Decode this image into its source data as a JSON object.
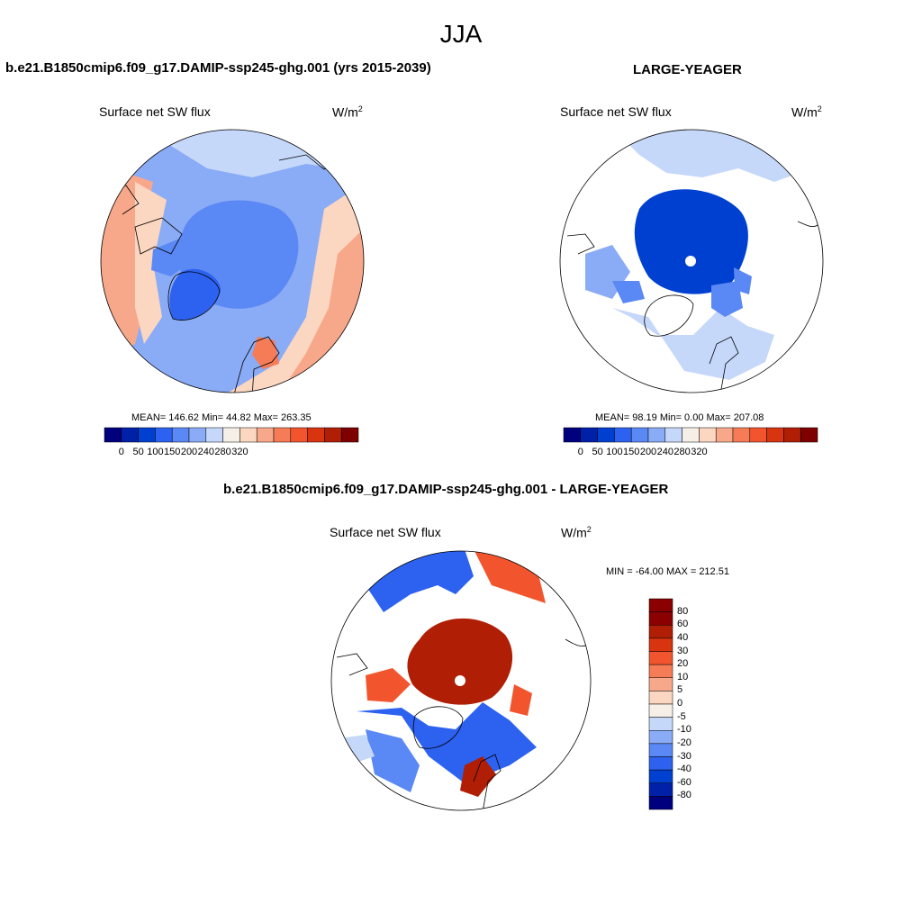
{
  "main_title": "JJA",
  "panels": [
    {
      "title": "b.e21.B1850cmip6.f09_g17.DAMIP-ssp245-ghg.001 (yrs 2015-2039)",
      "variable": "Surface net SW flux",
      "units": "W/m",
      "units_sup": "2",
      "stats": "MEAN= 146.62  Min=  44.82  Max= 263.35"
    },
    {
      "title": "LARGE-YEAGER",
      "variable": "Surface net SW flux",
      "units": "W/m",
      "units_sup": "2",
      "stats": "MEAN=  98.19  Min=   0.00  Max= 207.08"
    },
    {
      "title": "b.e21.B1850cmip6.f09_g17.DAMIP-ssp245-ghg.001 - LARGE-YEAGER",
      "variable": "Surface net SW flux",
      "units": "W/m",
      "units_sup": "2",
      "stats": "MIN = -64.00 MAX = 212.51"
    }
  ],
  "colorbar_abs": {
    "colors": [
      "#00007f",
      "#0020a8",
      "#0040d0",
      "#2d62f0",
      "#5a88f4",
      "#8aabf5",
      "#c5d8fa",
      "#f5efe8",
      "#fbd6c1",
      "#f8a88a",
      "#f57c56",
      "#f2552e",
      "#d93410",
      "#b01e05",
      "#7f0000"
    ],
    "tick_labels": [
      "0",
      "50",
      "100",
      "150",
      "200",
      "240",
      "280",
      "320"
    ]
  },
  "colorbar_diff": {
    "colors": [
      "#8b0000",
      "#b01e05",
      "#d93410",
      "#f2552e",
      "#f57c56",
      "#f8a88a",
      "#fbd6c1",
      "#f5efe8",
      "#c5d8fa",
      "#8aabf5",
      "#5a88f4",
      "#2d62f0",
      "#0040d0",
      "#0020a8",
      "#00007f"
    ],
    "tick_labels": [
      "80",
      "60",
      "40",
      "30",
      "20",
      "10",
      "5",
      "0",
      "-5",
      "-10",
      "-20",
      "-30",
      "-40",
      "-60",
      "-80"
    ]
  },
  "maps": {
    "projection": "north-polar-stereographic",
    "map1_colors": {
      "ocean": "#8aabf5",
      "arctic": "#5a88f4",
      "greenland": "#2d62f0",
      "land_warm": "#f8a88a",
      "land_mid": "#fbd6c1",
      "land_cool": "#c5d8fa"
    },
    "map2_colors": {
      "ocean": "#c5d8fa",
      "arctic": "#0040d0",
      "coastal": "#5a88f4",
      "land": "#ffffff"
    },
    "map3_colors": {
      "arctic": "#b01e05",
      "ocean": "#2d62f0",
      "coastal": "#f2552e",
      "pale": "#c5d8fa",
      "land": "#ffffff"
    }
  }
}
